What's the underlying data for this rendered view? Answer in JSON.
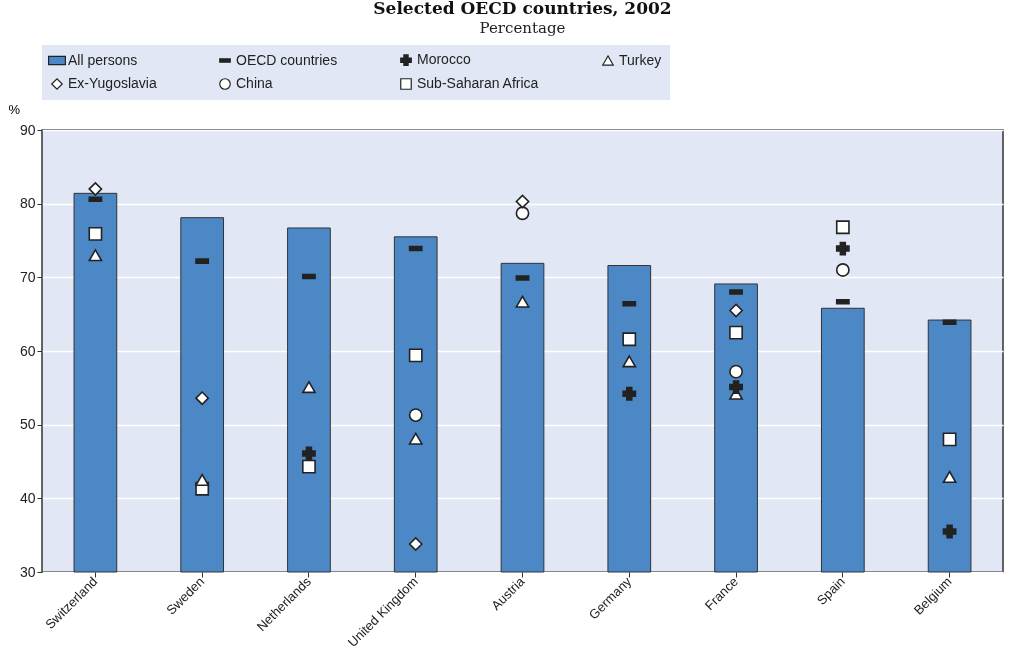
{
  "chart_data": {
    "type": "bar",
    "title": "Selected OECD countries, 2002",
    "subtitle": "Percentage",
    "ylabel": "%",
    "categories": [
      "Switzerland",
      "Sweden",
      "Netherlands",
      "United Kingdom",
      "Austria",
      "Germany",
      "France",
      "Spain",
      "Belgium"
    ],
    "series": [
      {
        "name": "All persons",
        "type": "bar",
        "color": "#4d88c6",
        "values": [
          81.4,
          78.1,
          76.7,
          75.5,
          71.9,
          71.6,
          69.1,
          65.8,
          64.2
        ]
      },
      {
        "name": "OECD countries",
        "type": "scatter",
        "color": "#222222",
        "values": [
          80.6,
          72.2,
          70.1,
          73.9,
          69.9,
          66.4,
          68.0,
          66.7,
          63.9
        ]
      },
      {
        "name": "Morocco",
        "type": "scatter",
        "marker": "cross",
        "color": "#222222",
        "values": [
          null,
          null,
          46.1,
          null,
          null,
          54.2,
          55.1,
          73.9,
          35.5
        ]
      },
      {
        "name": "Turkey",
        "type": "scatter",
        "marker": "triangle",
        "color": "#ffffff",
        "values": [
          73.0,
          42.5,
          55.1,
          48.1,
          66.7,
          58.6,
          54.2,
          null,
          42.9
        ]
      },
      {
        "name": "Ex-Yugoslavia",
        "type": "scatter",
        "marker": "diamond",
        "color": "#ffffff",
        "values": [
          82.0,
          53.6,
          null,
          33.8,
          80.3,
          null,
          65.5,
          null,
          null
        ]
      },
      {
        "name": "China",
        "type": "scatter",
        "marker": "circle",
        "color": "#ffffff",
        "values": [
          null,
          null,
          null,
          51.3,
          78.7,
          null,
          57.2,
          71.0,
          null
        ]
      },
      {
        "name": "Sub-Saharan Africa",
        "type": "scatter",
        "marker": "square",
        "color": "#ffffff",
        "values": [
          75.9,
          41.3,
          44.3,
          59.4,
          null,
          61.6,
          62.5,
          76.8,
          48.0
        ]
      }
    ],
    "ylim": [
      30,
      90
    ],
    "yticks": [
      30,
      40,
      50,
      60,
      70,
      80,
      90
    ],
    "grid": "y",
    "legend": "top"
  }
}
